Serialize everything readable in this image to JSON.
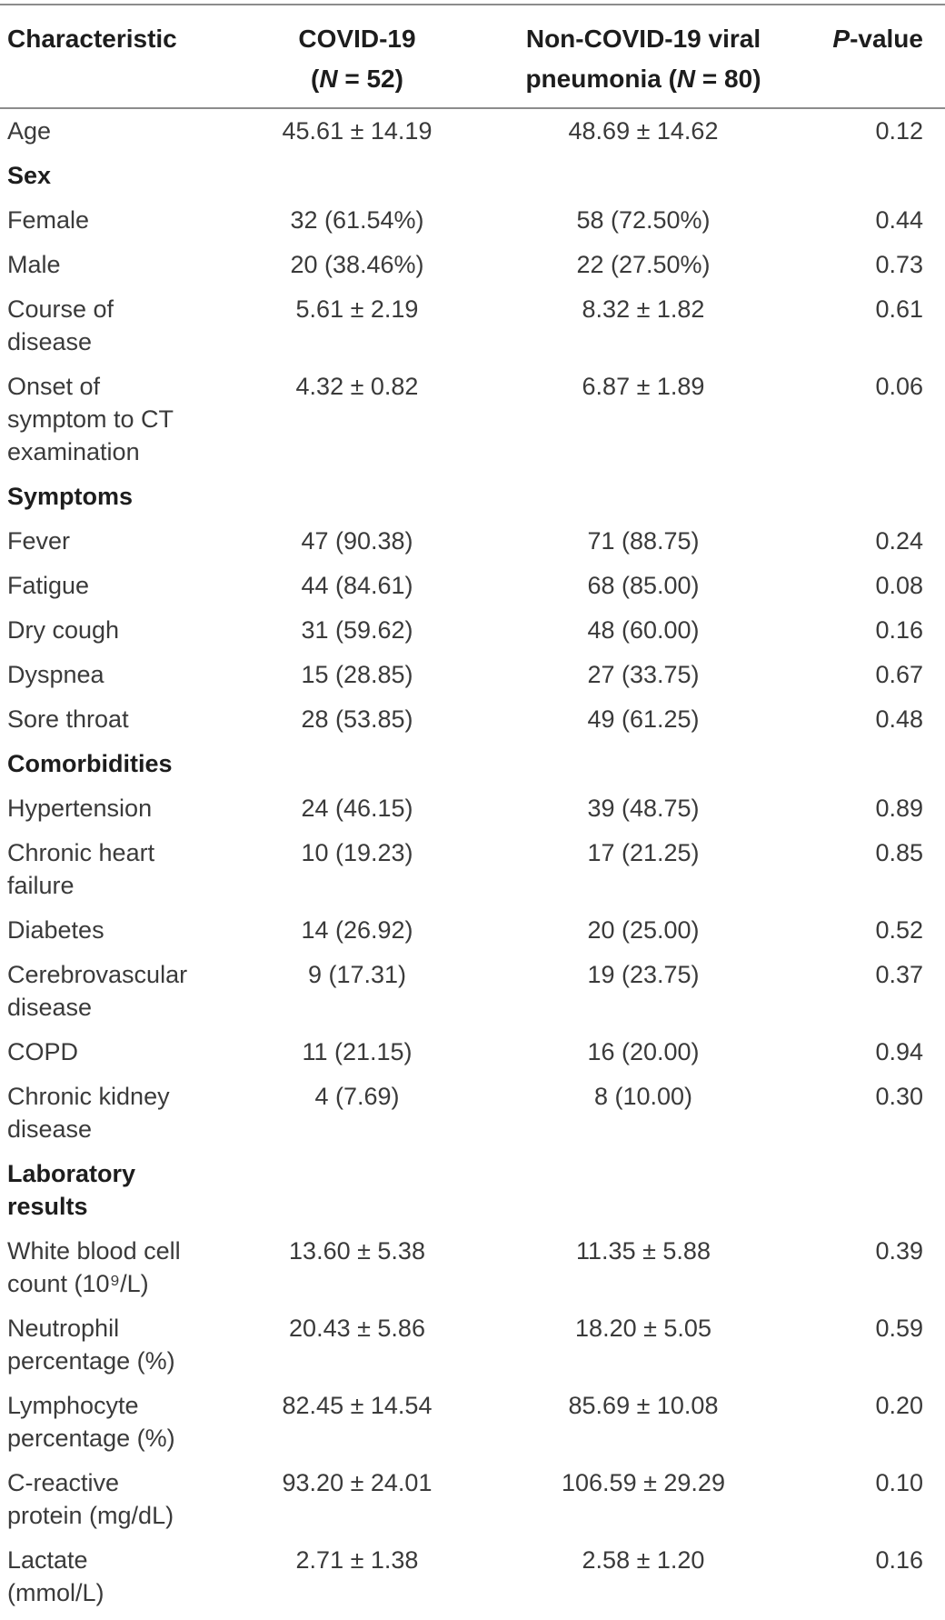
{
  "colors": {
    "rule": "#8c8c8c",
    "body_text": "#3a3a3a",
    "header_text": "#1d1d1d",
    "background": "#ffffff"
  },
  "table": {
    "header": {
      "col1": "Characteristic",
      "col2": {
        "line1": "COVID-19",
        "paren_open": "(",
        "n_italic": "N",
        "n_rest": " = 52)"
      },
      "col3": {
        "line1": "Non-COVID-19 viral",
        "line2_pre": "pneumonia (",
        "n_italic": "N",
        "n_rest": " = 80)"
      },
      "col4": {
        "p_italic": "P",
        "rest": "-value"
      }
    },
    "rows": [
      {
        "type": "data",
        "label": "Age",
        "covid": "45.61 ± 14.19",
        "noncovid": "48.69 ± 14.62",
        "p": "0.12"
      },
      {
        "type": "section",
        "label": "Sex",
        "covid": "",
        "noncovid": "",
        "p": ""
      },
      {
        "type": "data",
        "label": "Female",
        "covid": "32 (61.54%)",
        "noncovid": "58 (72.50%)",
        "p": "0.44"
      },
      {
        "type": "data",
        "label": "Male",
        "covid": "20 (38.46%)",
        "noncovid": "22 (27.50%)",
        "p": "0.73"
      },
      {
        "type": "data",
        "label": "Course of\ndisease",
        "covid": "5.61 ± 2.19",
        "noncovid": "8.32 ± 1.82",
        "p": "0.61"
      },
      {
        "type": "data",
        "label": "Onset of\nsymptom to CT\nexamination",
        "covid": "4.32 ± 0.82",
        "noncovid": "6.87 ± 1.89",
        "p": "0.06"
      },
      {
        "type": "section",
        "label": "Symptoms",
        "covid": "",
        "noncovid": "",
        "p": ""
      },
      {
        "type": "data",
        "label": "Fever",
        "covid": "47 (90.38)",
        "noncovid": "71 (88.75)",
        "p": "0.24"
      },
      {
        "type": "data",
        "label": "Fatigue",
        "covid": "44 (84.61)",
        "noncovid": "68 (85.00)",
        "p": "0.08"
      },
      {
        "type": "data",
        "label": "Dry cough",
        "covid": "31 (59.62)",
        "noncovid": "48 (60.00)",
        "p": "0.16"
      },
      {
        "type": "data",
        "label": "Dyspnea",
        "covid": "15 (28.85)",
        "noncovid": "27 (33.75)",
        "p": "0.67"
      },
      {
        "type": "data",
        "label": "Sore throat",
        "covid": "28 (53.85)",
        "noncovid": "49 (61.25)",
        "p": "0.48"
      },
      {
        "type": "section",
        "label": "Comorbidities",
        "covid": "",
        "noncovid": "",
        "p": ""
      },
      {
        "type": "data",
        "label": "Hypertension",
        "covid": "24 (46.15)",
        "noncovid": "39 (48.75)",
        "p": "0.89"
      },
      {
        "type": "data",
        "label": "Chronic heart\nfailure",
        "covid": "10 (19.23)",
        "noncovid": "17 (21.25)",
        "p": "0.85"
      },
      {
        "type": "data",
        "label": "Diabetes",
        "covid": "14 (26.92)",
        "noncovid": "20 (25.00)",
        "p": "0.52"
      },
      {
        "type": "data",
        "label": "Cerebrovascular\ndisease",
        "covid": "9 (17.31)",
        "noncovid": "19 (23.75)",
        "p": "0.37"
      },
      {
        "type": "data",
        "label": "COPD",
        "covid": "11 (21.15)",
        "noncovid": "16 (20.00)",
        "p": "0.94"
      },
      {
        "type": "data",
        "label": "Chronic kidney\ndisease",
        "covid": "4 (7.69)",
        "noncovid": "8 (10.00)",
        "p": "0.30"
      },
      {
        "type": "section",
        "label": "Laboratory\nresults",
        "covid": "",
        "noncovid": "",
        "p": ""
      },
      {
        "type": "data",
        "label": "White blood cell\ncount (10⁹/L)",
        "covid": "13.60 ± 5.38",
        "noncovid": "11.35 ± 5.88",
        "p": "0.39"
      },
      {
        "type": "data",
        "label": "Neutrophil\npercentage (%)",
        "covid": "20.43 ± 5.86",
        "noncovid": "18.20 ± 5.05",
        "p": "0.59"
      },
      {
        "type": "data",
        "label": "Lymphocyte\npercentage (%)",
        "covid": "82.45 ± 14.54",
        "noncovid": "85.69 ± 10.08",
        "p": "0.20"
      },
      {
        "type": "data",
        "label": "C-reactive\nprotein (mg/dL)",
        "covid": "93.20 ± 24.01",
        "noncovid": "106.59 ± 29.29",
        "p": "0.10"
      },
      {
        "type": "data",
        "label": "Lactate\n(mmol/L)",
        "covid": "2.71 ± 1.38",
        "noncovid": "2.58 ± 1.20",
        "p": "0.16"
      }
    ]
  }
}
